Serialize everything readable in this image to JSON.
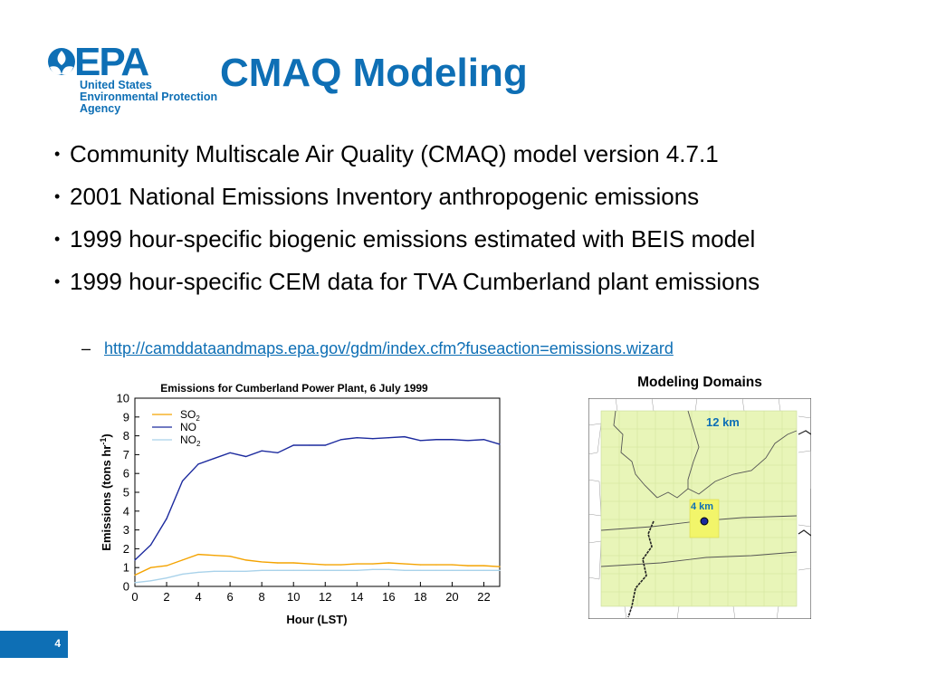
{
  "logo": {
    "word": "EPA",
    "subtitle_lines": [
      "United States",
      "Environmental Protection",
      "Agency"
    ]
  },
  "slide": {
    "title": "CMAQ Modeling",
    "bullets": [
      "Community Multiscale Air Quality (CMAQ) model version 4.7.1",
      "2001 National Emissions Inventory anthropogenic emissions",
      "1999 hour-specific biogenic emissions estimated with BEIS model",
      "1999 hour-specific CEM data for TVA Cumberland plant emissions"
    ],
    "bullet_glyph": "•",
    "sub_dash": "–",
    "sub_link": "http://camddataandmaps.epa.gov/gdm/index.cfm?fuseaction=emissions.wizard",
    "page_number": "4"
  },
  "domains": {
    "title": "Modeling Domains",
    "label_12km": "12 km",
    "label_4km": "4 km"
  },
  "colors": {
    "brand_blue": "#0e6fb5",
    "so2": "#f4a300",
    "no": "#1c2a9e",
    "no2": "#a9d2ea",
    "map_fill": "#e8f5b8",
    "domain4": "#f2f56a"
  },
  "chart_data": {
    "type": "line",
    "title": "Emissions for Cumberland Power Plant, 6 July 1999",
    "xlabel": "Hour (LST)",
    "ylabel": "Emissions (tons hr",
    "ylabel_sup": "-1",
    "ylabel_end": ")",
    "xlim": [
      0,
      23
    ],
    "ylim": [
      0,
      10
    ],
    "xticks": [
      0,
      2,
      4,
      6,
      8,
      10,
      12,
      14,
      16,
      18,
      20,
      22
    ],
    "yticks": [
      0,
      1,
      2,
      3,
      4,
      5,
      6,
      7,
      8,
      9,
      10
    ],
    "legend_position": "top-left",
    "x": [
      0,
      1,
      2,
      3,
      4,
      5,
      6,
      7,
      8,
      9,
      10,
      11,
      12,
      13,
      14,
      15,
      16,
      17,
      18,
      19,
      20,
      21,
      22,
      23
    ],
    "series": [
      {
        "name": "SO",
        "name_sub": "2",
        "color": "#f4a300",
        "values": [
          0.6,
          1.0,
          1.1,
          1.4,
          1.7,
          1.65,
          1.6,
          1.4,
          1.3,
          1.25,
          1.25,
          1.2,
          1.15,
          1.15,
          1.2,
          1.2,
          1.25,
          1.2,
          1.15,
          1.15,
          1.15,
          1.1,
          1.1,
          1.05
        ]
      },
      {
        "name": "NO",
        "name_sub": "",
        "color": "#1c2a9e",
        "values": [
          1.4,
          2.2,
          3.6,
          5.6,
          6.5,
          6.8,
          7.1,
          6.9,
          7.2,
          7.1,
          7.5,
          7.5,
          7.5,
          7.8,
          7.9,
          7.85,
          7.9,
          7.95,
          7.75,
          7.8,
          7.8,
          7.75,
          7.8,
          7.55
        ]
      },
      {
        "name": "NO",
        "name_sub": "2",
        "color": "#a9d2ea",
        "values": [
          0.2,
          0.3,
          0.45,
          0.65,
          0.75,
          0.8,
          0.8,
          0.8,
          0.85,
          0.85,
          0.85,
          0.85,
          0.85,
          0.85,
          0.85,
          0.9,
          0.9,
          0.85,
          0.85,
          0.85,
          0.85,
          0.85,
          0.85,
          0.85
        ]
      }
    ]
  }
}
